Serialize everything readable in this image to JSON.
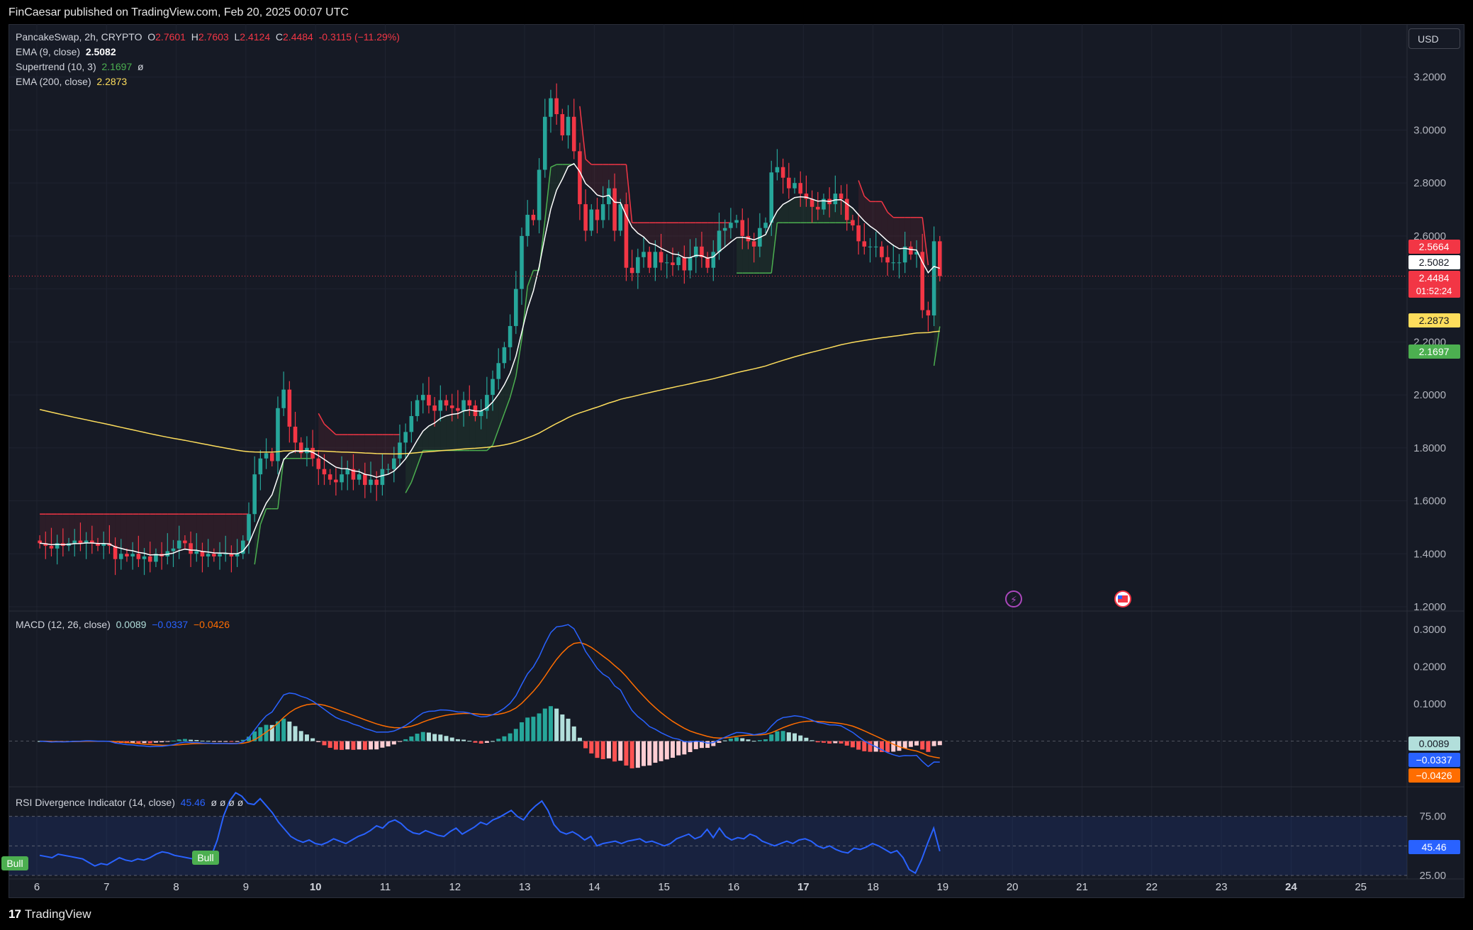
{
  "header": {
    "published": "FinCaesar published on TradingView.com, Feb 20, 2025 00:07 UTC"
  },
  "footer": {
    "brand": "TradingView",
    "brand_mark": "17"
  },
  "currency_button": "USD",
  "legend": {
    "symbol": "PancakeSwap, 2h, CRYPTO",
    "o_label": "O",
    "o": "2.7601",
    "h_label": "H",
    "h": "2.7603",
    "l_label": "L",
    "l": "2.4124",
    "c_label": "C",
    "c": "2.4484",
    "change": "-0.3115 (−11.29%)",
    "ema9_label": "EMA (9, close)",
    "ema9": "2.5082",
    "st_label": "Supertrend (10, 3)",
    "st": "2.1697",
    "st_extra": "ø",
    "ema200_label": "EMA (200, close)",
    "ema200": "2.2873",
    "macd_label": "MACD (12, 26, close)",
    "macd_hist": "0.0089",
    "macd_line": "−0.0337",
    "macd_signal": "−0.0426",
    "rsi_label": "RSI Divergence Indicator (14, close)",
    "rsi": "45.46",
    "rsi_extra": "ø  ø  ø  ø"
  },
  "price_badges": [
    {
      "text": "2.5664",
      "bg": "#f23645",
      "fg": "#ffffff",
      "value": 2.5664
    },
    {
      "text": "2.5082",
      "bg": "#ffffff",
      "fg": "#131722",
      "value": 2.5082
    },
    {
      "text": "2.4484",
      "bg": "#f23645",
      "fg": "#ffffff",
      "value": 2.4484,
      "sub": "01:52:24"
    },
    {
      "text": "2.2873",
      "bg": "#fddd5c",
      "fg": "#131722",
      "value": 2.2873
    },
    {
      "text": "2.1697",
      "bg": "#4caf50",
      "fg": "#ffffff",
      "value": 2.1697
    }
  ],
  "macd_badges": [
    {
      "text": "0.0089",
      "bg": "#b2dfdb",
      "fg": "#131722",
      "value": 0.0089
    },
    {
      "text": "−0.0337",
      "bg": "#2962ff",
      "fg": "#ffffff",
      "value": -0.0337
    },
    {
      "text": "−0.0426",
      "bg": "#ff6d00",
      "fg": "#ffffff",
      "value": -0.0426
    }
  ],
  "rsi_badges": [
    {
      "text": "45.46",
      "bg": "#2962ff",
      "fg": "#ffffff",
      "value": 45.46
    }
  ],
  "signals": [
    {
      "text": "Bull",
      "bg": "#4caf50"
    },
    {
      "text": "Bull",
      "bg": "#4caf50"
    }
  ],
  "colors": {
    "bg": "#161a25",
    "grid": "#1f2330",
    "up": "#26a69a",
    "down": "#f23645",
    "ema9": "#ffffff",
    "ema200": "#fddd5c",
    "st_up": "#4caf50",
    "st_down": "#f23645",
    "macd": "#2962ff",
    "signal": "#ff6d00",
    "rsi": "#2962ff"
  },
  "chart_data": [
    {
      "type": "candlestick",
      "title": "PancakeSwap, 2h, CRYPTO",
      "x_ticks": [
        "6",
        "7",
        "8",
        "9",
        "10",
        "11",
        "12",
        "13",
        "14",
        "15",
        "16",
        "17",
        "18",
        "19",
        "20",
        "21",
        "22",
        "23",
        "24",
        "25"
      ],
      "y_ticks": [
        "1.2000",
        "1.4000",
        "1.6000",
        "1.8000",
        "2.0000",
        "2.2000",
        "2.4000",
        "2.6000",
        "2.8000",
        "3.0000",
        "3.2000"
      ],
      "ylim": [
        1.2,
        3.4
      ],
      "day_start": 6,
      "candles_per_day": 12,
      "close": [
        1.44,
        1.43,
        1.42,
        1.44,
        1.43,
        1.44,
        1.45,
        1.44,
        1.45,
        1.44,
        1.43,
        1.44,
        1.43,
        1.38,
        1.4,
        1.39,
        1.4,
        1.38,
        1.39,
        1.37,
        1.4,
        1.39,
        1.41,
        1.42,
        1.45,
        1.44,
        1.4,
        1.41,
        1.39,
        1.4,
        1.39,
        1.4,
        1.4,
        1.39,
        1.4,
        1.45,
        1.55,
        1.7,
        1.76,
        1.78,
        1.75,
        1.95,
        2.02,
        1.88,
        1.82,
        1.78,
        1.8,
        1.76,
        1.72,
        1.7,
        1.68,
        1.67,
        1.7,
        1.72,
        1.68,
        1.7,
        1.66,
        1.68,
        1.66,
        1.72,
        1.72,
        1.76,
        1.82,
        1.86,
        1.92,
        1.98,
        2.0,
        1.96,
        1.94,
        1.98,
        1.96,
        1.95,
        1.94,
        1.98,
        1.96,
        1.92,
        1.94,
        2.0,
        2.06,
        2.12,
        2.18,
        2.26,
        2.4,
        2.6,
        2.68,
        2.66,
        2.85,
        3.05,
        3.12,
        3.06,
        2.98,
        3.05,
        2.92,
        2.72,
        2.62,
        2.7,
        2.66,
        2.72,
        2.78,
        2.62,
        2.72,
        2.48,
        2.46,
        2.52,
        2.54,
        2.48,
        2.54,
        2.5,
        2.5,
        2.49,
        2.52,
        2.47,
        2.52,
        2.56,
        2.52,
        2.48,
        2.54,
        2.62,
        2.63,
        2.65,
        2.66,
        2.6,
        2.58,
        2.56,
        2.63,
        2.65,
        2.84,
        2.86,
        2.82,
        2.78,
        2.8,
        2.76,
        2.74,
        2.71,
        2.7,
        2.74,
        2.72,
        2.76,
        2.74,
        2.66,
        2.64,
        2.58,
        2.56,
        2.56,
        2.56,
        2.52,
        2.5,
        2.5,
        2.5,
        2.56,
        2.53,
        2.54,
        2.32,
        2.3,
        2.58,
        2.4484
      ],
      "overlays": {
        "ema9": 2.5082,
        "ema200": 2.2873,
        "supertrend": 2.1697
      }
    },
    {
      "type": "bar",
      "title": "MACD (12, 26, close)",
      "y_ticks": [
        "0.1000",
        "0.2000",
        "0.3000"
      ],
      "ylim": [
        -0.1,
        0.35
      ],
      "macd": -0.0337,
      "signal": -0.0426,
      "histogram": 0.0089
    },
    {
      "type": "line",
      "title": "RSI Divergence Indicator (14, close)",
      "y_ticks": [
        "25.00",
        "50.00",
        "75.00"
      ],
      "ylim": [
        25,
        100
      ],
      "value": 45.46,
      "values": [
        42,
        41,
        40,
        43,
        42,
        41,
        40,
        39,
        36,
        33,
        35,
        34,
        37,
        40,
        38,
        37,
        39,
        38,
        40,
        43,
        45,
        44,
        42,
        41,
        40,
        39,
        38,
        36,
        41,
        55,
        75,
        88,
        95,
        92,
        86,
        85,
        90,
        84,
        78,
        70,
        64,
        58,
        55,
        53,
        55,
        52,
        51,
        53,
        56,
        54,
        52,
        55,
        58,
        60,
        63,
        67,
        65,
        70,
        72,
        69,
        64,
        61,
        60,
        63,
        61,
        59,
        58,
        62,
        65,
        60,
        63,
        66,
        70,
        68,
        72,
        74,
        77,
        80,
        75,
        72,
        79,
        84,
        88,
        80,
        68,
        62,
        60,
        62,
        59,
        55,
        58,
        50,
        52,
        53,
        54,
        52,
        54,
        55,
        56,
        53,
        54,
        52,
        50,
        52,
        56,
        58,
        60,
        56,
        58,
        64,
        57,
        65,
        58,
        55,
        57,
        56,
        60,
        58,
        54,
        52,
        50,
        52,
        54,
        52,
        55,
        56,
        54,
        50,
        48,
        50,
        47,
        45,
        44,
        48,
        47,
        49,
        52,
        50,
        47,
        44,
        46,
        40,
        30,
        27,
        38,
        52,
        65,
        45.46
      ]
    }
  ]
}
